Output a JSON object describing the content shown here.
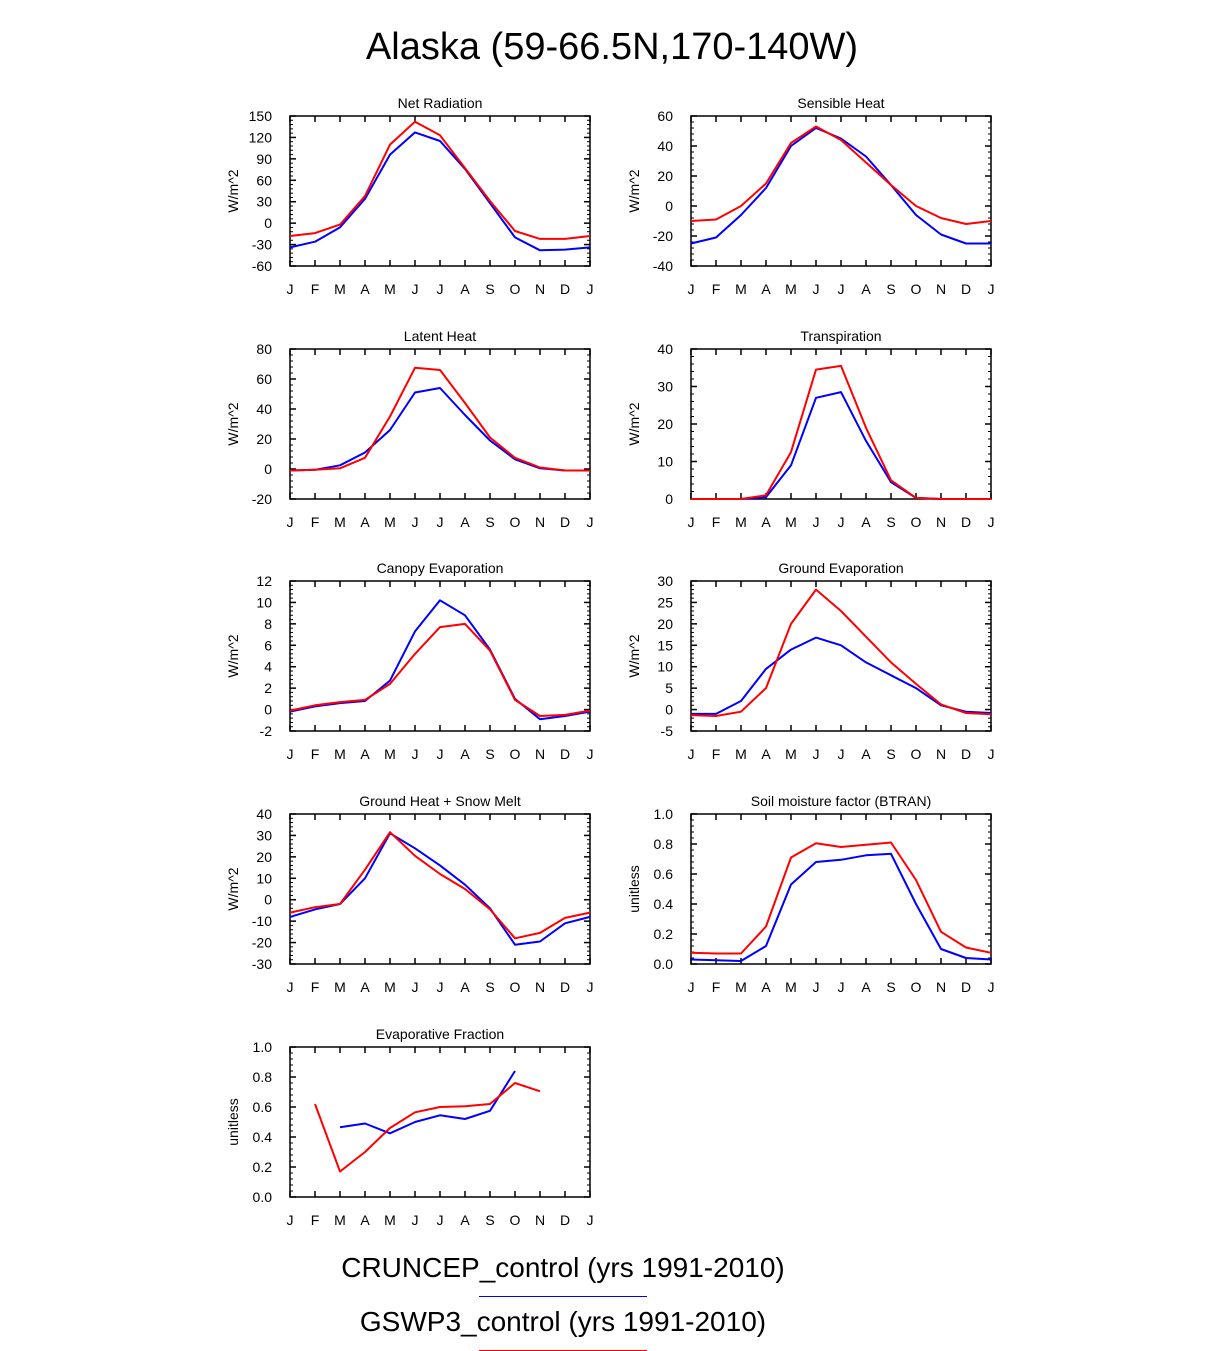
{
  "title": "Alaska (59-66.5N,170-140W)",
  "colors": {
    "series_1": "#0000ff",
    "series_2": "#ff0000",
    "axis": "#000000"
  },
  "legend": [
    {
      "label": "CRUNCEP_control (yrs 1991-2010)",
      "color": "#0000ff"
    },
    {
      "label": "GSWP3_control (yrs 1991-2010)",
      "color": "#ff0000"
    }
  ],
  "chart_data": [
    {
      "type": "line",
      "title": "Net Radiation",
      "ylabel": "W/m^2",
      "ylim": [
        -60,
        150
      ],
      "yticks": [
        -60,
        -30,
        0,
        30,
        60,
        90,
        120,
        150
      ],
      "ytick_labels": [
        "-60",
        "-30",
        "0",
        "30",
        "60",
        "90",
        "120",
        "150"
      ],
      "categories": [
        "J",
        "F",
        "M",
        "A",
        "M",
        "J",
        "J",
        "A",
        "S",
        "O",
        "N",
        "D",
        "J"
      ],
      "series": [
        {
          "name": "CRUNCEP_control (yrs 1991-2010)",
          "color": "#0000ff",
          "values": [
            -34,
            -26,
            -6,
            34,
            96,
            127,
            115,
            76,
            28,
            -20,
            -38,
            -37,
            -34
          ]
        },
        {
          "name": "GSWP3_control (yrs 1991-2010)",
          "color": "#ff0000",
          "values": [
            -18,
            -14,
            -2,
            38,
            110,
            142,
            123,
            77,
            31,
            -11,
            -22,
            -22,
            -18
          ]
        }
      ]
    },
    {
      "type": "line",
      "title": "Sensible Heat",
      "ylabel": "W/m^2",
      "ylim": [
        -40,
        60
      ],
      "yticks": [
        -40,
        -20,
        0,
        20,
        40,
        60
      ],
      "ytick_labels": [
        "-40",
        "-20",
        "0",
        "20",
        "40",
        "60"
      ],
      "categories": [
        "J",
        "F",
        "M",
        "A",
        "M",
        "J",
        "J",
        "A",
        "S",
        "O",
        "N",
        "D",
        "J"
      ],
      "series": [
        {
          "name": "CRUNCEP_control (yrs 1991-2010)",
          "color": "#0000ff",
          "values": [
            -25,
            -21,
            -6,
            12,
            40,
            52,
            45,
            33,
            14,
            -6,
            -19,
            -25,
            -25
          ]
        },
        {
          "name": "GSWP3_control (yrs 1991-2010)",
          "color": "#ff0000",
          "values": [
            -10,
            -9,
            0,
            15,
            42,
            53,
            44,
            29,
            14,
            0,
            -8,
            -12,
            -10
          ]
        }
      ]
    },
    {
      "type": "line",
      "title": "Latent Heat",
      "ylabel": "W/m^2",
      "ylim": [
        -20,
        80
      ],
      "yticks": [
        -20,
        0,
        20,
        40,
        60,
        80
      ],
      "ytick_labels": [
        "-20",
        "0",
        "20",
        "40",
        "60",
        "80"
      ],
      "categories": [
        "J",
        "F",
        "M",
        "A",
        "M",
        "J",
        "J",
        "A",
        "S",
        "O",
        "N",
        "D",
        "J"
      ],
      "series": [
        {
          "name": "CRUNCEP_control (yrs 1991-2010)",
          "color": "#0000ff",
          "values": [
            -1,
            -0.5,
            2.5,
            11,
            26,
            51,
            54,
            36,
            19,
            6.5,
            0.5,
            -1,
            -1
          ]
        },
        {
          "name": "GSWP3_control (yrs 1991-2010)",
          "color": "#ff0000",
          "values": [
            -1,
            -0.5,
            0.5,
            7.5,
            35,
            67.5,
            66,
            44,
            21,
            7.5,
            1,
            -1,
            -1
          ]
        }
      ]
    },
    {
      "type": "line",
      "title": "Transpiration",
      "ylabel": "W/m^2",
      "ylim": [
        0,
        40
      ],
      "yticks": [
        0,
        10,
        20,
        30,
        40
      ],
      "ytick_labels": [
        "0",
        "10",
        "20",
        "30",
        "40"
      ],
      "categories": [
        "J",
        "F",
        "M",
        "A",
        "M",
        "J",
        "J",
        "A",
        "S",
        "O",
        "N",
        "D",
        "J"
      ],
      "series": [
        {
          "name": "CRUNCEP_control (yrs 1991-2010)",
          "color": "#0000ff",
          "values": [
            0,
            0,
            0,
            0.5,
            9,
            27,
            28.5,
            15.5,
            4.5,
            0.3,
            0,
            0,
            0
          ]
        },
        {
          "name": "GSWP3_control (yrs 1991-2010)",
          "color": "#ff0000",
          "values": [
            0,
            0,
            0,
            1,
            12.5,
            34.5,
            35.5,
            19,
            5,
            0.3,
            0,
            0,
            0
          ]
        }
      ]
    },
    {
      "type": "line",
      "title": "Canopy Evaporation",
      "ylabel": "W/m^2",
      "ylim": [
        -2,
        12
      ],
      "yticks": [
        -2,
        0,
        2,
        4,
        6,
        8,
        10,
        12
      ],
      "ytick_labels": [
        "-2",
        "0",
        "2",
        "4",
        "6",
        "8",
        "10",
        "12"
      ],
      "categories": [
        "J",
        "F",
        "M",
        "A",
        "M",
        "J",
        "J",
        "A",
        "S",
        "O",
        "N",
        "D",
        "J"
      ],
      "series": [
        {
          "name": "CRUNCEP_control (yrs 1991-2010)",
          "color": "#0000ff",
          "values": [
            -0.2,
            0.3,
            0.6,
            0.8,
            2.7,
            7.3,
            10.2,
            8.8,
            5.6,
            1,
            -0.9,
            -0.6,
            -0.2
          ]
        },
        {
          "name": "GSWP3_control (yrs 1991-2010)",
          "color": "#ff0000",
          "values": [
            -0.1,
            0.4,
            0.7,
            0.9,
            2.4,
            5.2,
            7.7,
            8,
            5.5,
            0.9,
            -0.6,
            -0.5,
            -0.1
          ]
        }
      ]
    },
    {
      "type": "line",
      "title": "Ground Evaporation",
      "ylabel": "W/m^2",
      "ylim": [
        -5,
        30
      ],
      "yticks": [
        -5,
        0,
        5,
        10,
        15,
        20,
        25,
        30
      ],
      "ytick_labels": [
        "-5",
        "0",
        "5",
        "10",
        "15",
        "20",
        "25",
        "30"
      ],
      "categories": [
        "J",
        "F",
        "M",
        "A",
        "M",
        "J",
        "J",
        "A",
        "S",
        "O",
        "N",
        "D",
        "J"
      ],
      "series": [
        {
          "name": "CRUNCEP_control (yrs 1991-2010)",
          "color": "#0000ff",
          "values": [
            -1,
            -1,
            2,
            9.5,
            14,
            16.8,
            15,
            11,
            8,
            5,
            1,
            -0.5,
            -0.8
          ]
        },
        {
          "name": "GSWP3_control (yrs 1991-2010)",
          "color": "#ff0000",
          "values": [
            -1.3,
            -1.5,
            -0.5,
            5,
            20,
            28,
            23,
            17,
            11,
            6,
            1.2,
            -0.8,
            -1.1
          ]
        }
      ]
    },
    {
      "type": "line",
      "title": "Ground Heat + Snow Melt",
      "ylabel": "W/m^2",
      "ylim": [
        -30,
        40
      ],
      "yticks": [
        -30,
        -20,
        -10,
        0,
        10,
        20,
        30,
        40
      ],
      "ytick_labels": [
        "-30",
        "-20",
        "-10",
        "0",
        "10",
        "20",
        "30",
        "40"
      ],
      "categories": [
        "J",
        "F",
        "M",
        "A",
        "M",
        "J",
        "J",
        "A",
        "S",
        "O",
        "N",
        "D",
        "J"
      ],
      "series": [
        {
          "name": "CRUNCEP_control (yrs 1991-2010)",
          "color": "#0000ff",
          "values": [
            -8,
            -4.5,
            -2,
            10,
            31,
            24,
            16,
            7,
            -4,
            -21,
            -19.5,
            -11,
            -8
          ]
        },
        {
          "name": "GSWP3_control (yrs 1991-2010)",
          "color": "#ff0000",
          "values": [
            -6,
            -3.5,
            -2,
            14,
            31.5,
            20.5,
            12,
            5,
            -4.5,
            -18,
            -15.5,
            -8.5,
            -6
          ]
        }
      ]
    },
    {
      "type": "line",
      "title": "Soil moisture factor (BTRAN)",
      "ylabel": "unitless",
      "ylim": [
        0,
        1
      ],
      "yticks": [
        0,
        0.2,
        0.4,
        0.6,
        0.8,
        1
      ],
      "ytick_labels": [
        "0.0",
        "0.2",
        "0.4",
        "0.6",
        "0.8",
        "1.0"
      ],
      "categories": [
        "J",
        "F",
        "M",
        "A",
        "M",
        "J",
        "J",
        "A",
        "S",
        "O",
        "N",
        "D",
        "J"
      ],
      "series": [
        {
          "name": "CRUNCEP_control (yrs 1991-2010)",
          "color": "#0000ff",
          "values": [
            0.03,
            0.025,
            0.02,
            0.12,
            0.53,
            0.68,
            0.695,
            0.725,
            0.735,
            0.4,
            0.1,
            0.04,
            0.03
          ]
        },
        {
          "name": "GSWP3_control (yrs 1991-2010)",
          "color": "#ff0000",
          "values": [
            0.075,
            0.07,
            0.07,
            0.25,
            0.71,
            0.805,
            0.78,
            0.795,
            0.81,
            0.56,
            0.215,
            0.11,
            0.075
          ]
        }
      ]
    },
    {
      "type": "line",
      "title": "Evaporative Fraction",
      "ylabel": "unitless",
      "ylim": [
        0,
        1
      ],
      "yticks": [
        0,
        0.2,
        0.4,
        0.6,
        0.8,
        1
      ],
      "ytick_labels": [
        "0.0",
        "0.2",
        "0.4",
        "0.6",
        "0.8",
        "1.0"
      ],
      "categories": [
        "J",
        "F",
        "M",
        "A",
        "M",
        "J",
        "J",
        "A",
        "S",
        "O",
        "N",
        "D",
        "J"
      ],
      "series": [
        {
          "name": "CRUNCEP_control (yrs 1991-2010)",
          "color": "#0000ff",
          "values": [
            null,
            null,
            0.465,
            0.49,
            0.425,
            0.5,
            0.545,
            0.52,
            0.575,
            0.84,
            null,
            null,
            null
          ]
        },
        {
          "name": "GSWP3_control (yrs 1991-2010)",
          "color": "#ff0000",
          "values": [
            null,
            0.62,
            0.17,
            0.3,
            0.46,
            0.565,
            0.6,
            0.605,
            0.62,
            0.76,
            0.705,
            null,
            null
          ]
        }
      ]
    }
  ]
}
